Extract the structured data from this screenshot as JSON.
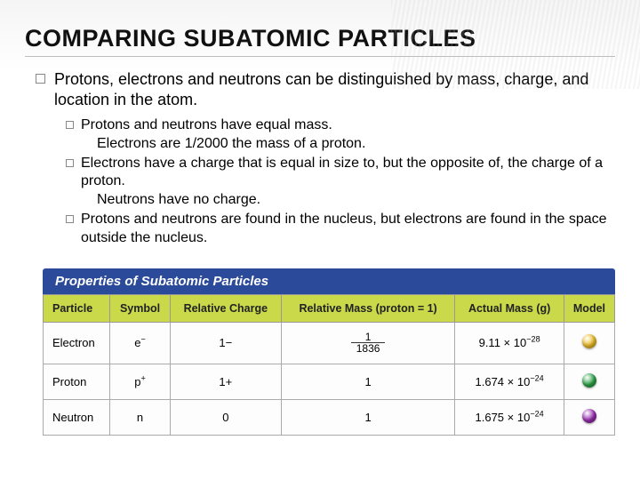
{
  "title": "COMPARING SUBATOMIC PARTICLES",
  "intro": "Protons, electrons and neutrons can be distinguished by mass, charge, and location in the atom.",
  "subpoints": [
    {
      "line1": "Protons and neutrons have equal mass.",
      "line2": "Electrons are 1/2000 the mass of a proton."
    },
    {
      "line1": "Electrons have a charge that is equal in size to, but the opposite of, the charge of a proton.",
      "line2": "Neutrons have no charge."
    },
    {
      "line1": "Protons and neutrons are found in the nucleus, but electrons are found in the space outside the nucleus.",
      "line2": ""
    }
  ],
  "table": {
    "title": "Properties of Subatomic Particles",
    "columns": [
      "Particle",
      "Symbol",
      "Relative Charge",
      "Relative Mass (proton = 1)",
      "Actual Mass (g)",
      "Model"
    ],
    "header_bg": "#c9d94a",
    "title_bg": "#2c4a9a",
    "rows": [
      {
        "particle": "Electron",
        "symbol_base": "e",
        "symbol_sup": "−",
        "charge": "1−",
        "mass_frac_num": "1",
        "mass_frac_den": "1836",
        "actual_coef": "9.11",
        "actual_exp": "−28",
        "model_color": "#f2c128"
      },
      {
        "particle": "Proton",
        "symbol_base": "p",
        "symbol_sup": "+",
        "charge": "1+",
        "mass_plain": "1",
        "actual_coef": "1.674",
        "actual_exp": "−24",
        "model_color": "#2fa84a"
      },
      {
        "particle": "Neutron",
        "symbol_base": "n",
        "symbol_sup": "",
        "charge": "0",
        "mass_plain": "1",
        "actual_coef": "1.675",
        "actual_exp": "−24",
        "model_color": "#9b2fb5"
      }
    ]
  }
}
